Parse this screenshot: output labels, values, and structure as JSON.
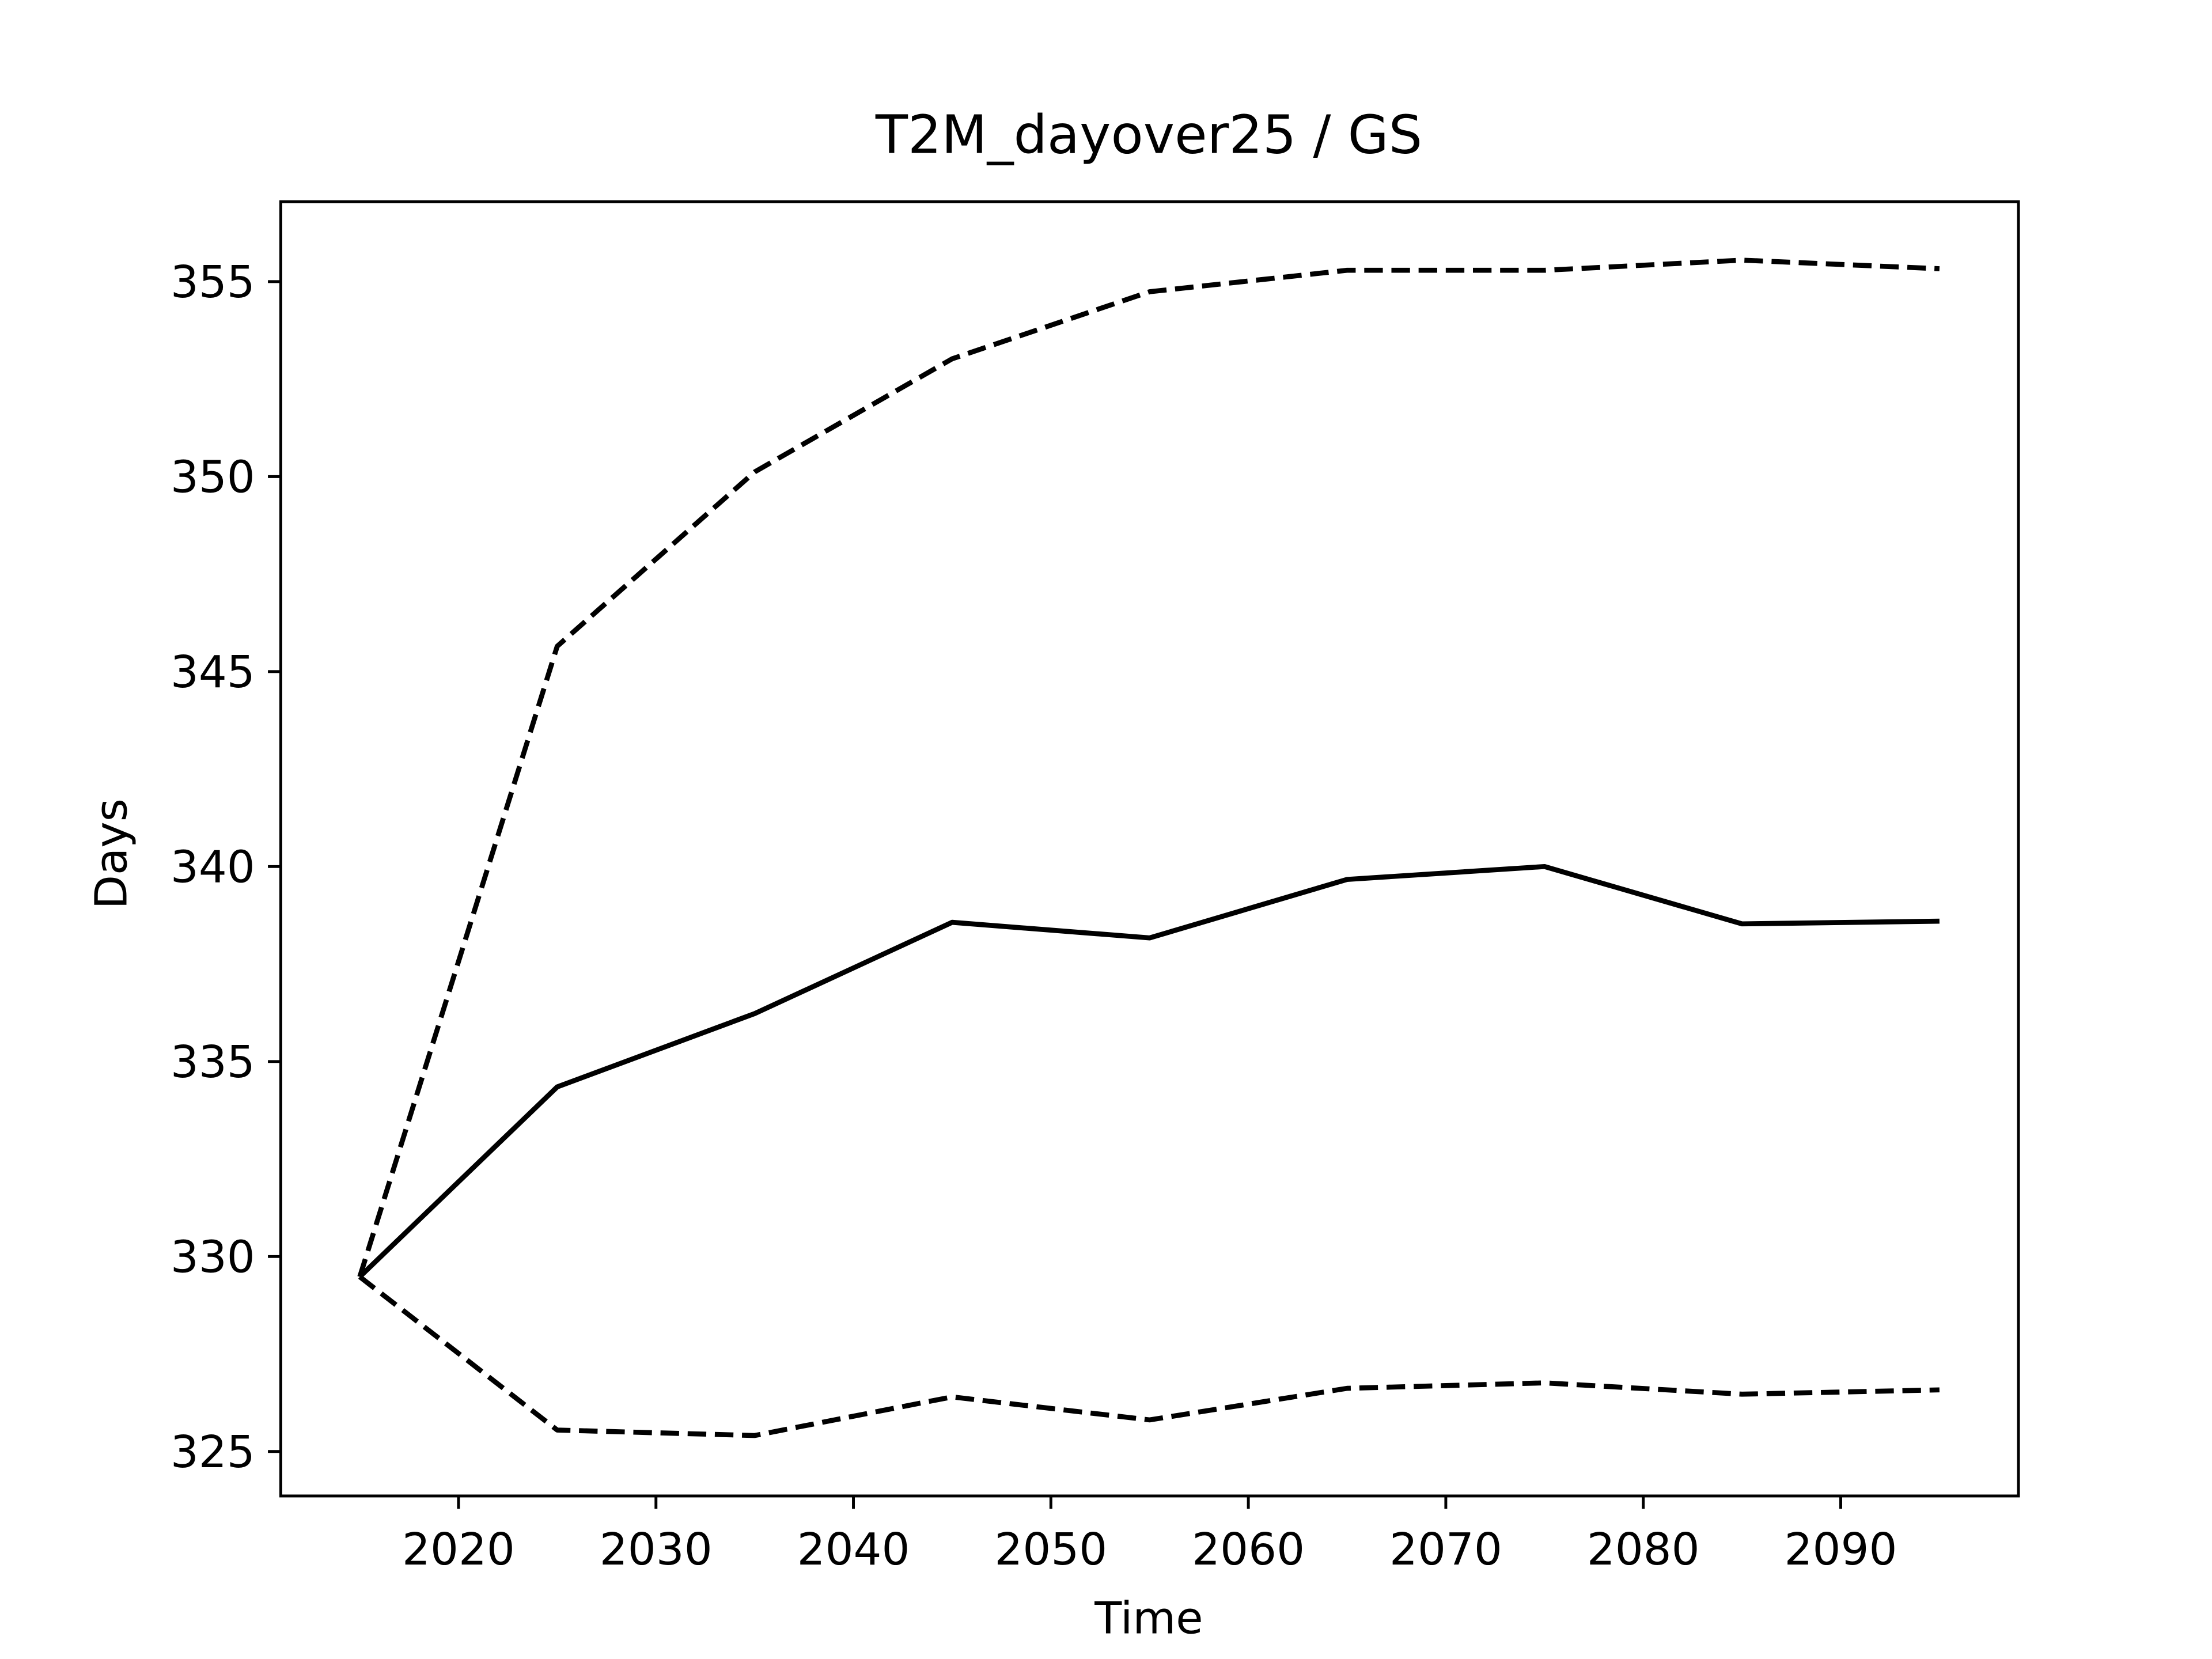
{
  "chart_data": {
    "type": "line",
    "title": "T2M_dayover25 / GS",
    "xlabel": "Time",
    "ylabel": "Days",
    "x": [
      2015,
      2025,
      2035,
      2045,
      2055,
      2065,
      2075,
      2085,
      2095
    ],
    "series": [
      {
        "color": "#000000",
        "linestyle": "solid",
        "values": [
          329.48,
          334.35,
          336.23,
          338.57,
          338.17,
          339.67,
          340.0,
          338.53,
          338.6
        ]
      },
      {
        "color": "#000000",
        "linestyle": "dashed",
        "values": [
          329.48,
          345.65,
          350.12,
          353.02,
          354.74,
          355.29,
          355.29,
          355.55,
          355.33
        ]
      },
      {
        "color": "#000000",
        "linestyle": "dashed",
        "values": [
          329.48,
          325.55,
          325.41,
          326.4,
          325.81,
          326.62,
          326.76,
          326.47,
          326.58
        ]
      }
    ],
    "xlim": [
      2011,
      2099
    ],
    "xticks": [
      2020,
      2030,
      2040,
      2050,
      2060,
      2070,
      2080,
      2090
    ],
    "ylim": [
      323.86,
      357.05
    ],
    "yticks": [
      325,
      330,
      335,
      340,
      345,
      350,
      355
    ],
    "grid": false
  }
}
